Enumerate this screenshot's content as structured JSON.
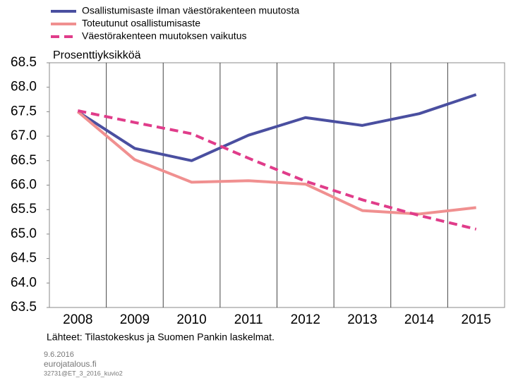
{
  "chart_data": {
    "type": "line",
    "y_axis_label": "Prosenttiyksikköä",
    "source": "Lähteet: Tilastokeskus ja Suomen Pankin laskelmat.",
    "footer": [
      "9.6.2016",
      "eurojatalous.fi",
      "32731@ET_3_2016_kuvio2"
    ],
    "categories": [
      "2008",
      "2009",
      "2010",
      "2011",
      "2012",
      "2013",
      "2014",
      "2015"
    ],
    "series": [
      {
        "name": "Osallistumisaste ilman väestörakenteen muutosta",
        "color": "#4a4fa0",
        "dashed": false,
        "values": [
          67.5,
          66.75,
          66.5,
          67.02,
          67.38,
          67.22,
          67.46,
          67.85
        ]
      },
      {
        "name": "Toteutunut osallistumisaste",
        "color": "#f09090",
        "dashed": false,
        "values": [
          67.5,
          66.52,
          66.06,
          66.09,
          66.02,
          65.48,
          65.41,
          65.54
        ]
      },
      {
        "name": "Väestörakenteen muutoksen vaikutus",
        "color": "#e03c8a",
        "dashed": true,
        "values": [
          67.52,
          67.28,
          67.05,
          66.55,
          66.08,
          65.7,
          65.38,
          65.1
        ]
      }
    ],
    "ylim": [
      63.5,
      68.5
    ],
    "yticks": [
      63.5,
      {
        "value": 64,
        "label": "64.0"
      },
      64.5,
      {
        "value": 65,
        "label": "65.0"
      },
      65.5,
      {
        "value": 66,
        "label": "66.0"
      },
      66.5,
      {
        "value": 67,
        "label": "67.0"
      },
      67.5,
      {
        "value": 68,
        "label": "68.0"
      },
      68.5
    ],
    "vertical_grid": true
  }
}
